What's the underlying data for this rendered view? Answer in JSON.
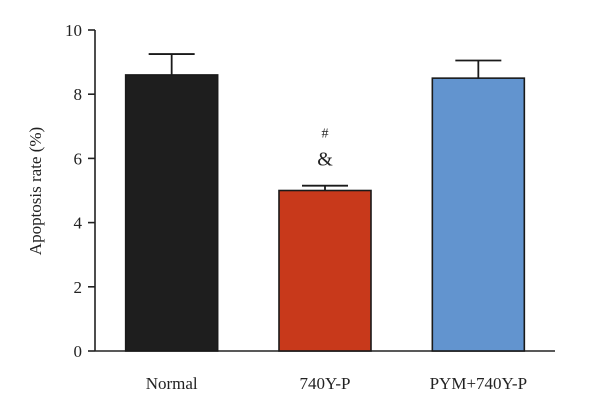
{
  "chart_data": {
    "type": "bar",
    "title": "",
    "xlabel": "",
    "ylabel": "Apoptosis rate (%)",
    "ylim": [
      0,
      10
    ],
    "yticks": [
      0,
      2,
      4,
      6,
      8,
      10
    ],
    "grid": false,
    "categories": [
      "Normal",
      "740Y-P",
      "PYM+740Y-P"
    ],
    "values": [
      8.6,
      5.0,
      8.5
    ],
    "errors": [
      0.65,
      0.15,
      0.55
    ],
    "colors": [
      "#1e1e1e",
      "#c8391b",
      "#6294cf"
    ],
    "annotations": [
      {
        "category": "740Y-P",
        "lines": [
          "#",
          "&"
        ]
      }
    ]
  }
}
